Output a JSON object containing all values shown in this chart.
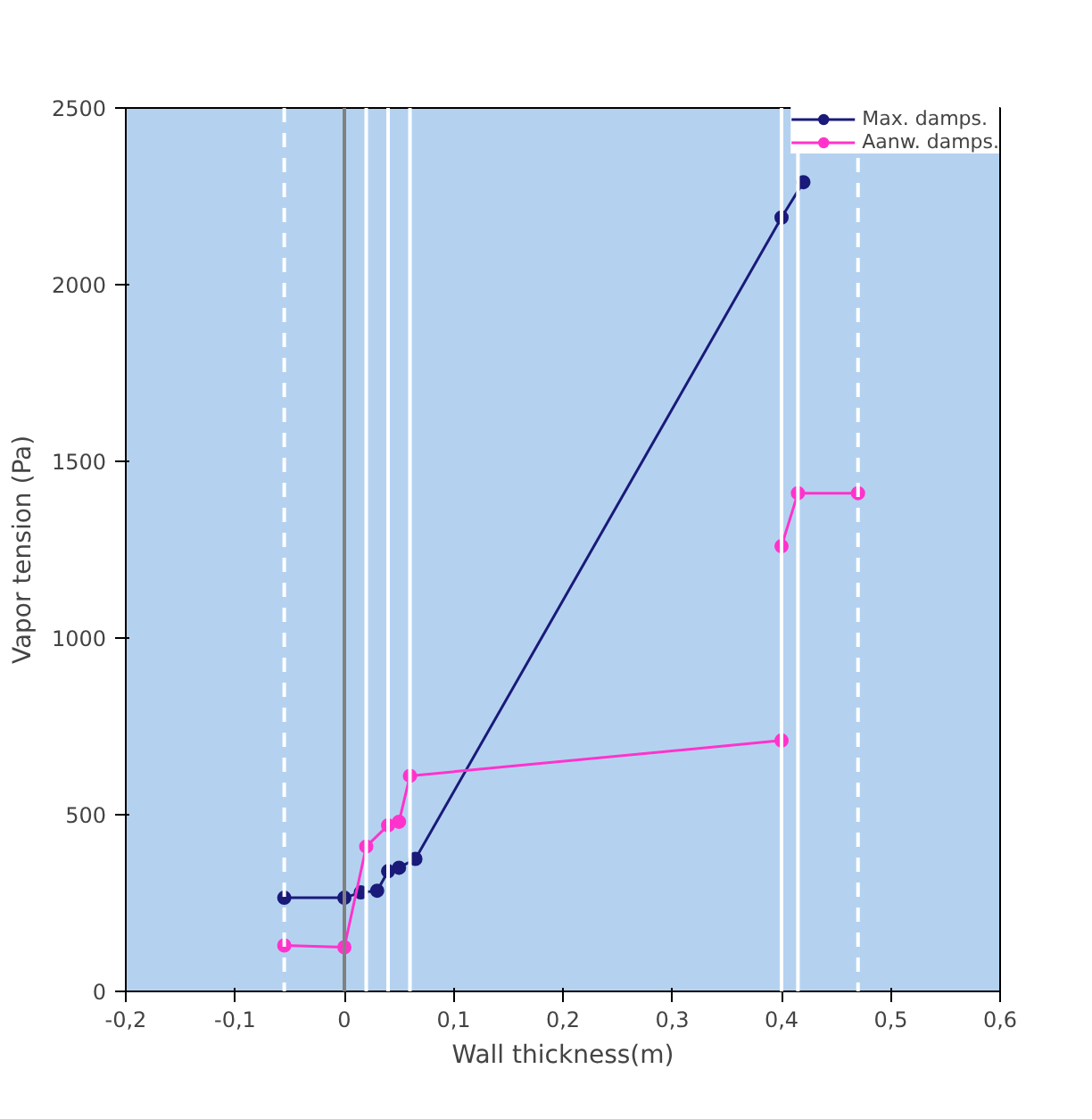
{
  "chart_data": {
    "type": "line",
    "xlabel": "Wall thickness(m)",
    "ylabel": "Vapor tension (Pa)",
    "series": [
      {
        "name": "Max. damps.",
        "color": "#1a1a7a",
        "x": [
          -0.055,
          0,
          0.015,
          0.03,
          0.04,
          0.05,
          0.065,
          0.4,
          0.42
        ],
        "values": [
          265,
          265,
          280,
          285,
          340,
          350,
          375,
          2190,
          2290
        ]
      },
      {
        "name": "Aanw. damps.",
        "color": "#ff33cc",
        "x": [
          -0.055,
          0,
          0.02,
          0.04,
          0.05,
          0.06,
          0.4,
          0.4,
          0.415,
          0.47
        ],
        "values": [
          130,
          125,
          410,
          470,
          480,
          610,
          710,
          1260,
          1410,
          1410
        ]
      }
    ],
    "ref_lines": [
      {
        "axis": "x",
        "value": -0.055,
        "color": "#ffffff",
        "line_style": "dashed"
      },
      {
        "axis": "x",
        "value": 0,
        "color": "#808080",
        "line_style": "solid"
      },
      {
        "axis": "x",
        "value": 0.02,
        "color": "#ffffff",
        "line_style": "solid"
      },
      {
        "axis": "x",
        "value": 0.04,
        "color": "#ffffff",
        "line_style": "solid"
      },
      {
        "axis": "x",
        "value": 0.06,
        "color": "#ffffff",
        "line_style": "solid"
      },
      {
        "axis": "x",
        "value": 0.4,
        "color": "#ffffff",
        "line_style": "solid"
      },
      {
        "axis": "x",
        "value": 0.415,
        "color": "#ffffff",
        "line_style": "solid"
      },
      {
        "axis": "x",
        "value": 0.47,
        "color": "#ffffff",
        "line_style": "dashed"
      }
    ],
    "xlim": [
      -0.2,
      0.6
    ],
    "xticks": [
      {
        "value": -0.2,
        "label": "-0,2"
      },
      {
        "value": -0.1,
        "label": "-0,1"
      },
      0,
      {
        "value": 0.1,
        "label": "0,1"
      },
      {
        "value": 0.2,
        "label": "0,2"
      },
      {
        "value": 0.3,
        "label": "0,3"
      },
      {
        "value": 0.4,
        "label": "0,4"
      },
      {
        "value": 0.5,
        "label": "0,5"
      },
      {
        "value": 0.6,
        "label": "0,6"
      }
    ],
    "ylim": [
      0,
      2500
    ],
    "yticks": [
      0,
      500,
      1000,
      1500,
      2000,
      2500
    ],
    "grid": false,
    "legend": "top right",
    "marker": "circle",
    "line_style": "solid"
  }
}
